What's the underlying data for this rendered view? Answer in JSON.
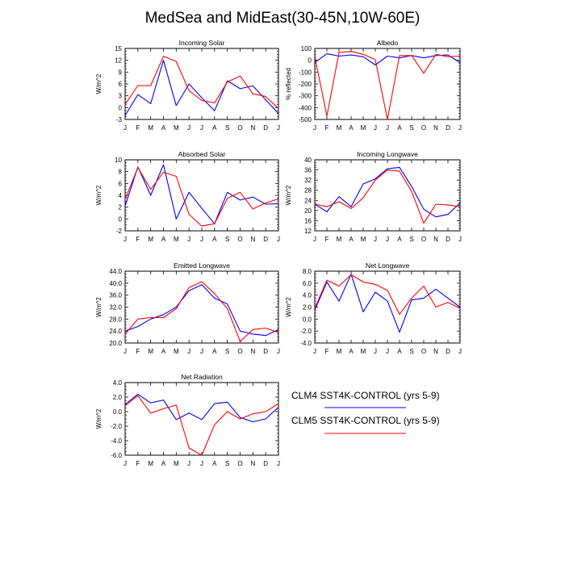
{
  "title": "MedSea and MidEast(30-45N,10W-60E)",
  "colors": {
    "clm4": "#0000ff",
    "clm5": "#ff0000",
    "axis": "#000000"
  },
  "legend": {
    "clm4": "CLM4 SST4K-CONTROL (yrs 5-9)",
    "clm5": "CLM5 SST4K-CONTROL (yrs 5-9)"
  },
  "chart_data": [
    {
      "type": "line",
      "title": "Incoming Solar",
      "ylabel": "W/m^2",
      "categories": [
        "J",
        "F",
        "M",
        "A",
        "M",
        "J",
        "J",
        "A",
        "S",
        "O",
        "N",
        "D",
        "J"
      ],
      "ylim": [
        -3,
        15
      ],
      "yticks": [
        "-3",
        "0",
        "3",
        "6",
        "9",
        "12",
        "15"
      ],
      "series": [
        {
          "name": "CLM4 SST4K-CONTROL (yrs 5-9)",
          "values": [
            -2.0,
            3.3,
            1.0,
            12.0,
            0.5,
            6.0,
            2.5,
            -0.8,
            6.8,
            4.8,
            5.5,
            2.0,
            -1.5
          ]
        },
        {
          "name": "CLM5 SST4K-CONTROL (yrs 5-9)",
          "values": [
            0.8,
            5.6,
            5.6,
            13.0,
            11.7,
            4.3,
            1.8,
            1.2,
            6.5,
            8.0,
            3.5,
            2.8,
            -0.2
          ]
        }
      ]
    },
    {
      "type": "line",
      "title": "Albedo",
      "ylabel": "% reflected",
      "categories": [
        "J",
        "F",
        "M",
        "A",
        "M",
        "J",
        "J",
        "A",
        "S",
        "O",
        "N",
        "D",
        "J"
      ],
      "ylim": [
        -500,
        100
      ],
      "yticks": [
        "-500",
        "-400",
        "-300",
        "-200",
        "-100",
        "0",
        "100"
      ],
      "series": [
        {
          "name": "CLM4 SST4K-CONTROL (yrs 5-9)",
          "values": [
            -20,
            55,
            35,
            45,
            30,
            -40,
            35,
            20,
            40,
            20,
            40,
            45,
            -20
          ]
        },
        {
          "name": "CLM5 SST4K-CONTROL (yrs 5-9)",
          "values": [
            30,
            -470,
            65,
            75,
            50,
            5,
            -500,
            40,
            40,
            -110,
            50,
            30,
            35
          ]
        }
      ]
    },
    {
      "type": "line",
      "title": "Absorbed Solar",
      "ylabel": "W/m^2",
      "categories": [
        "J",
        "F",
        "M",
        "A",
        "M",
        "J",
        "J",
        "A",
        "S",
        "O",
        "N",
        "D",
        "J"
      ],
      "ylim": [
        -2,
        10
      ],
      "yticks": [
        "-2",
        "0",
        "2",
        "4",
        "6",
        "8",
        "10"
      ],
      "series": [
        {
          "name": "CLM4 SST4K-CONTROL (yrs 5-9)",
          "values": [
            2.2,
            8.8,
            4.0,
            9.2,
            0.0,
            4.5,
            1.8,
            -0.8,
            4.5,
            3.2,
            3.7,
            2.5,
            2.6
          ]
        },
        {
          "name": "CLM5 SST4K-CONTROL (yrs 5-9)",
          "values": [
            3.3,
            8.7,
            5.0,
            7.9,
            7.2,
            0.8,
            -1.2,
            -0.8,
            3.5,
            4.5,
            1.7,
            2.7,
            3.4
          ]
        }
      ]
    },
    {
      "type": "line",
      "title": "Incoming Longwave",
      "ylabel": "W/m^2",
      "categories": [
        "J",
        "F",
        "M",
        "A",
        "M",
        "J",
        "J",
        "A",
        "S",
        "O",
        "N",
        "D",
        "J"
      ],
      "ylim": [
        12,
        40
      ],
      "yticks": [
        "12",
        "16",
        "20",
        "24",
        "28",
        "32",
        "36",
        "40"
      ],
      "series": [
        {
          "name": "CLM4 SST4K-CONTROL (yrs 5-9)",
          "values": [
            22.5,
            19.5,
            25.5,
            21.5,
            30.5,
            32.5,
            36.5,
            37.0,
            29.5,
            20.5,
            17.5,
            18.5,
            23.0
          ]
        },
        {
          "name": "CLM5 SST4K-CONTROL (yrs 5-9)",
          "values": [
            22.5,
            21.5,
            23.5,
            20.8,
            25.0,
            32.0,
            36.0,
            35.5,
            27.5,
            15.0,
            22.5,
            22.2,
            21.5
          ]
        }
      ]
    },
    {
      "type": "line",
      "title": "Emitted Longwave",
      "ylabel": "W/m^2",
      "categories": [
        "J",
        "F",
        "M",
        "A",
        "M",
        "J",
        "J",
        "A",
        "S",
        "O",
        "N",
        "D",
        "J"
      ],
      "ylim": [
        20,
        44
      ],
      "yticks": [
        "20.0",
        "24.0",
        "28.0",
        "32.0",
        "36.0",
        "40.0",
        "44.0"
      ],
      "series": [
        {
          "name": "CLM4 SST4K-CONTROL (yrs 5-9)",
          "values": [
            24.0,
            25.5,
            28.0,
            29.5,
            32.0,
            37.5,
            39.5,
            35.0,
            33.0,
            24.0,
            23.0,
            22.5,
            24.5
          ]
        },
        {
          "name": "CLM5 SST4K-CONTROL (yrs 5-9)",
          "values": [
            23.0,
            28.0,
            28.5,
            28.5,
            31.5,
            38.5,
            40.5,
            36.5,
            31.5,
            20.5,
            24.5,
            25.0,
            23.5
          ]
        }
      ]
    },
    {
      "type": "line",
      "title": "Net Longwave",
      "ylabel": "W/m^2",
      "categories": [
        "J",
        "F",
        "M",
        "A",
        "M",
        "J",
        "J",
        "A",
        "S",
        "O",
        "N",
        "D",
        "J"
      ],
      "ylim": [
        -4,
        8
      ],
      "yticks": [
        "-4.0",
        "-2.0",
        "0.0",
        "2.0",
        "4.0",
        "6.0",
        "8.0"
      ],
      "series": [
        {
          "name": "CLM4 SST4K-CONTROL (yrs 5-9)",
          "values": [
            1.5,
            6.2,
            3.0,
            7.5,
            1.2,
            4.5,
            3.0,
            -2.2,
            3.2,
            3.5,
            5.0,
            3.5,
            2.0
          ]
        },
        {
          "name": "CLM5 SST4K-CONTROL (yrs 5-9)",
          "values": [
            1.8,
            6.5,
            5.5,
            7.4,
            6.2,
            5.8,
            4.8,
            0.8,
            3.5,
            5.5,
            2.0,
            2.8,
            1.8
          ]
        }
      ]
    },
    {
      "type": "line",
      "title": "Net Radiation",
      "ylabel": "W/m^2",
      "categories": [
        "J",
        "F",
        "M",
        "A",
        "M",
        "J",
        "J",
        "A",
        "S",
        "O",
        "N",
        "D",
        "J"
      ],
      "ylim": [
        -6,
        4
      ],
      "yticks": [
        "-6.0",
        "-4.0",
        "-2.0",
        "0.0",
        "2.0",
        "4.0"
      ],
      "series": [
        {
          "name": "CLM4 SST4K-CONTROL (yrs 5-9)",
          "values": [
            1.0,
            2.4,
            1.2,
            1.6,
            -1.1,
            -0.2,
            -1.1,
            1.1,
            1.3,
            -0.8,
            -1.4,
            -1.0,
            0.6
          ]
        },
        {
          "name": "CLM5 SST4K-CONTROL (yrs 5-9)",
          "values": [
            0.8,
            2.2,
            -0.2,
            0.4,
            0.9,
            -5.0,
            -6.0,
            -1.8,
            0.0,
            -1.0,
            -0.3,
            0.0,
            1.1
          ]
        }
      ]
    }
  ]
}
